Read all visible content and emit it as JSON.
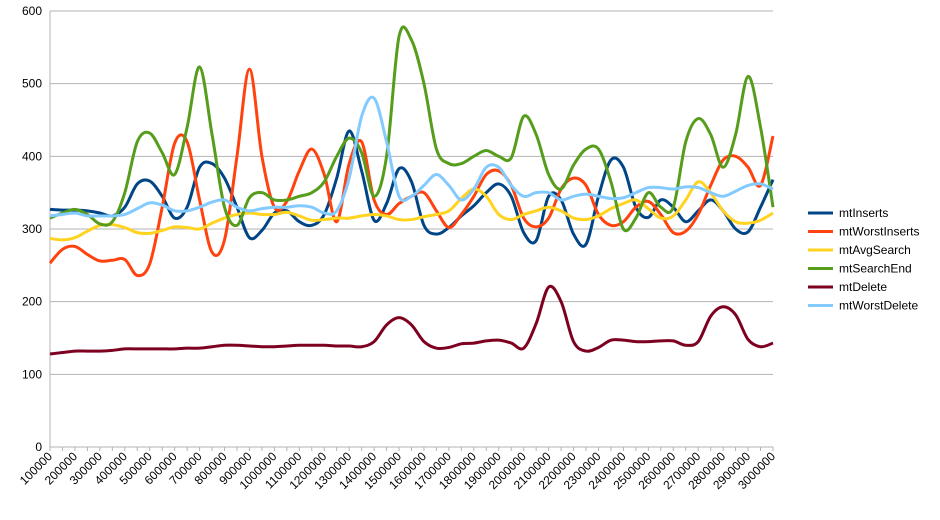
{
  "chart_data": {
    "type": "line",
    "categories": [
      "100000",
      null,
      "200000",
      null,
      "300000",
      null,
      "400000",
      null,
      "500000",
      null,
      "600000",
      null,
      "700000",
      null,
      "800000",
      null,
      "900000",
      null,
      "1000000",
      null,
      "1100000",
      null,
      "1200000",
      null,
      "1300000",
      null,
      "1400000",
      null,
      "1500000",
      null,
      "1600000",
      null,
      "1700000",
      null,
      "1800000",
      null,
      "1900000",
      null,
      "2000000",
      null,
      "2100000",
      null,
      "2200000",
      null,
      "2300000",
      null,
      "2400000",
      null,
      "2500000",
      null,
      "2600000",
      null,
      "2700000",
      null,
      "2800000",
      null,
      "2900000",
      null,
      "3000000"
    ],
    "series": [
      {
        "name": "mtInserts",
        "color": "#004586",
        "values": [
          327,
          326,
          326,
          325,
          322,
          318,
          330,
          362,
          366,
          345,
          315,
          330,
          385,
          390,
          370,
          330,
          288,
          298,
          322,
          325,
          310,
          305,
          320,
          370,
          435,
          380,
          312,
          335,
          383,
          365,
          305,
          293,
          302,
          318,
          332,
          350,
          362,
          345,
          295,
          284,
          345,
          340,
          293,
          279,
          345,
          395,
          385,
          330,
          316,
          340,
          330,
          310,
          325,
          340,
          325,
          300,
          296,
          330,
          368
        ]
      },
      {
        "name": "mtWorstInserts",
        "color": "#ff420e",
        "values": [
          253,
          272,
          276,
          265,
          256,
          257,
          258,
          236,
          252,
          330,
          418,
          420,
          340,
          268,
          285,
          400,
          520,
          400,
          330,
          338,
          380,
          410,
          375,
          310,
          390,
          420,
          340,
          320,
          335,
          345,
          350,
          325,
          302,
          320,
          345,
          375,
          380,
          360,
          315,
          303,
          315,
          355,
          370,
          360,
          320,
          305,
          310,
          330,
          338,
          320,
          295,
          297,
          320,
          360,
          395,
          400,
          385,
          360,
          428
        ]
      },
      {
        "name": "mtAvgSearch",
        "color": "#ffd320",
        "values": [
          287,
          285,
          288,
          297,
          305,
          306,
          302,
          295,
          294,
          298,
          303,
          302,
          300,
          308,
          315,
          320,
          322,
          320,
          320,
          323,
          318,
          312,
          313,
          315,
          315,
          318,
          320,
          318,
          313,
          313,
          317,
          320,
          325,
          342,
          355,
          345,
          320,
          313,
          320,
          325,
          330,
          325,
          315,
          313,
          318,
          328,
          335,
          340,
          328,
          315,
          318,
          340,
          365,
          350,
          325,
          310,
          308,
          312,
          322
        ]
      },
      {
        "name": "mtSearchEnd",
        "color": "#579d1c",
        "values": [
          315,
          322,
          327,
          320,
          307,
          310,
          350,
          420,
          432,
          405,
          375,
          440,
          523,
          430,
          330,
          305,
          343,
          350,
          340,
          340,
          345,
          350,
          365,
          400,
          425,
          405,
          345,
          400,
          565,
          560,
          500,
          410,
          390,
          390,
          400,
          408,
          400,
          398,
          455,
          430,
          375,
          355,
          388,
          410,
          410,
          365,
          300,
          315,
          350,
          330,
          330,
          420,
          452,
          430,
          385,
          430,
          510,
          440,
          330
        ]
      },
      {
        "name": "mtDelete",
        "color": "#7e0021",
        "values": [
          128,
          130,
          132,
          132,
          132,
          133,
          135,
          135,
          135,
          135,
          135,
          136,
          136,
          138,
          140,
          140,
          139,
          138,
          138,
          139,
          140,
          140,
          140,
          139,
          139,
          138,
          145,
          168,
          178,
          168,
          145,
          136,
          137,
          142,
          143,
          146,
          147,
          143,
          136,
          170,
          220,
          200,
          145,
          132,
          137,
          147,
          147,
          145,
          145,
          146,
          146,
          140,
          145,
          180,
          193,
          182,
          148,
          138,
          143
        ]
      },
      {
        "name": "mtWorstDelete",
        "color": "#83caff",
        "values": [
          318,
          320,
          322,
          318,
          318,
          318,
          320,
          328,
          336,
          333,
          325,
          325,
          330,
          337,
          340,
          330,
          325,
          328,
          330,
          330,
          332,
          330,
          322,
          325,
          370,
          455,
          480,
          420,
          345,
          345,
          360,
          375,
          360,
          340,
          355,
          385,
          385,
          360,
          345,
          350,
          350,
          340,
          345,
          348,
          345,
          342,
          343,
          350,
          357,
          357,
          355,
          358,
          357,
          350,
          345,
          352,
          360,
          362,
          355
        ]
      }
    ],
    "ylim": [
      0,
      600
    ],
    "yticks": [
      0,
      100,
      200,
      300,
      400,
      500,
      600
    ],
    "grid": true,
    "legend": "right"
  }
}
